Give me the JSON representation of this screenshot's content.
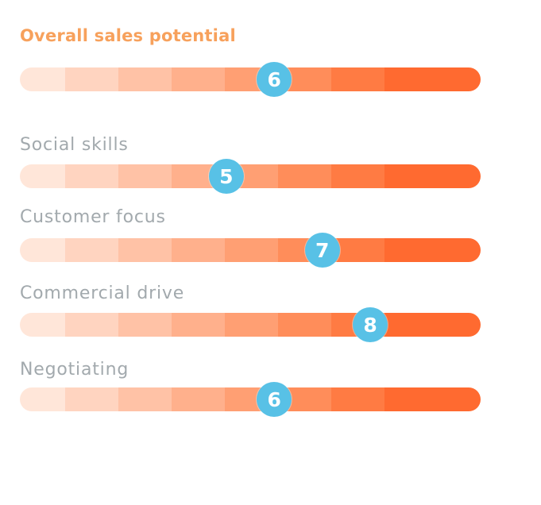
{
  "colors": {
    "title": "#f7a15c",
    "label": "#a2a9ad",
    "marker": "#58c1e6",
    "segments": [
      "#ffe6d9",
      "#ffd4c0",
      "#ffc2a6",
      "#ffb08c",
      "#ff9f73",
      "#ff8d5a",
      "#ff7b43",
      "#ff6a30"
    ]
  },
  "chart_data": {
    "type": "bar",
    "title": "Overall sales potential",
    "scale": [
      1,
      10
    ],
    "items": [
      {
        "label": "Overall sales potential",
        "value": 6,
        "display": "6",
        "is_overall": true
      },
      {
        "label": "Social skills",
        "value": 5,
        "display": "5"
      },
      {
        "label": "Customer focus",
        "value": 7,
        "display": "7"
      },
      {
        "label": "Commercial drive",
        "value": 8,
        "display": "8"
      },
      {
        "label": "Negotiating",
        "value": 6,
        "display": "6"
      }
    ]
  }
}
